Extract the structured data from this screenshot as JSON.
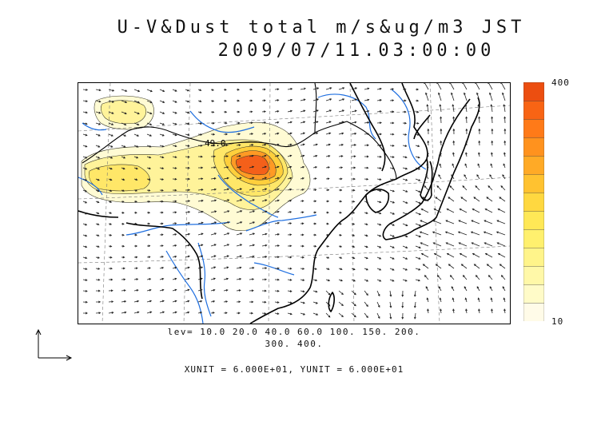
{
  "title": {
    "line1": "U-V&Dust total m/s&ug/m3 JST",
    "line2": "2009/07/11.03:00:00"
  },
  "map": {
    "contour_label": "49.0",
    "colors": {
      "coastline": "#000000",
      "rivers": "#1f6fe0",
      "vectors": "#222222",
      "graticule": "#777777"
    }
  },
  "colorbar": {
    "max_label": "400",
    "min_label": "10",
    "colors": [
      "#fffbe8",
      "#fffbc8",
      "#fff8a8",
      "#fff48a",
      "#fff06e",
      "#ffe856",
      "#ffd840",
      "#ffc230",
      "#ffaa26",
      "#ff921e",
      "#ff7a18",
      "#f86414",
      "#ec4e10"
    ]
  },
  "legend": {
    "lev_line1": "lev= 10.0 20.0 40.0 60.0 100. 150. 200.",
    "lev_line2": "300. 400.",
    "unit_text": "XUNIT = 6.000E+01, YUNIT = 6.000E+01"
  }
}
